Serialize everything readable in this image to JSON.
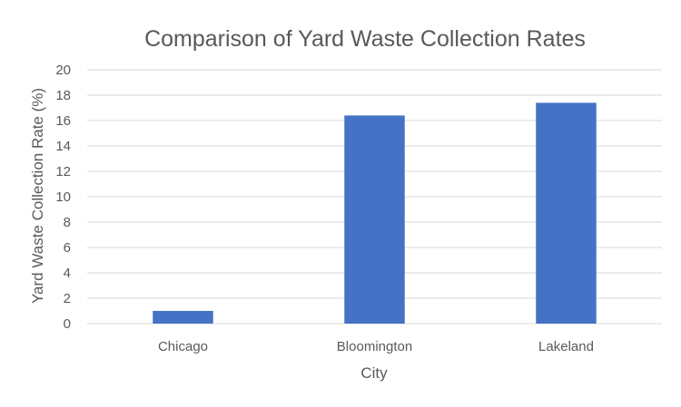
{
  "chart_data": {
    "type": "bar",
    "title": "Comparison of Yard Waste Collection Rates",
    "xlabel": "City",
    "ylabel": "Yard Waste Collection Rate (%)",
    "categories": [
      "Chicago",
      "Bloomington",
      "Lakeland"
    ],
    "values": [
      1.0,
      16.4,
      17.4
    ],
    "ylim": [
      0,
      20
    ],
    "yticks": [
      0,
      2,
      4,
      6,
      8,
      10,
      12,
      14,
      16,
      18,
      20
    ],
    "grid": true,
    "legend": "none",
    "bar_color": "#4472C4"
  }
}
